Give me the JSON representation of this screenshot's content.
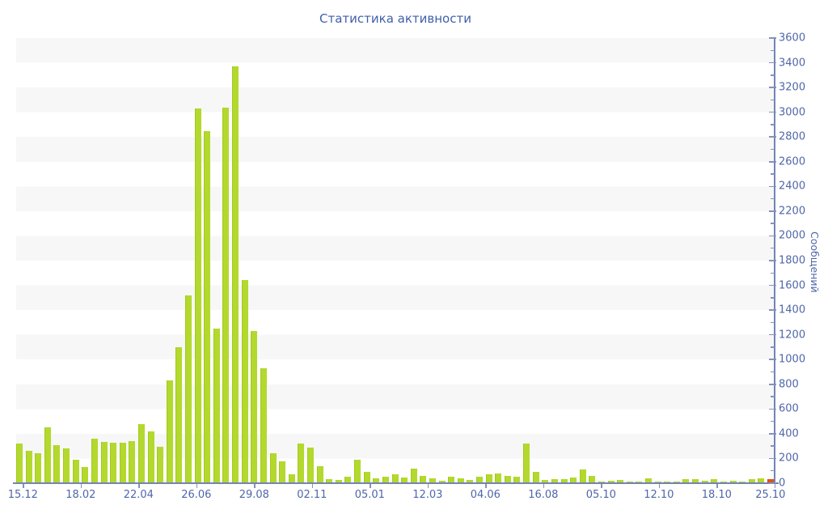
{
  "title": "Статистика активности",
  "colors": {
    "bar": "#b3d92e",
    "bar_border": "#a2c91c",
    "last_bar": "#dd5512",
    "last_bar_border": "#c74a0c",
    "axis": "#7384b5",
    "tick": "#8492bb",
    "text": "#4f67a8",
    "band": "#f7f7f8",
    "background": "#ffffff"
  },
  "chart_data": {
    "type": "bar",
    "title": "Статистика активности",
    "xlabel": "",
    "ylabel": "Сообщений",
    "ylim": [
      0,
      3600
    ],
    "y_tick_step": 200,
    "y_minor_tick_step": 100,
    "grid": "alternating horizontal bands every 200 units, top band (3600-3400) shaded",
    "legend_position": "none",
    "x_tick_labels": [
      "15.12",
      "18.02",
      "22.04",
      "26.06",
      "29.08",
      "02.11",
      "05.01",
      "12.03",
      "04.06",
      "16.08",
      "05.10",
      "12.10",
      "18.10",
      "25.10"
    ],
    "values": [
      320,
      260,
      240,
      450,
      310,
      280,
      190,
      130,
      360,
      335,
      330,
      330,
      340,
      480,
      420,
      295,
      830,
      1100,
      1520,
      3030,
      2850,
      1250,
      3040,
      3370,
      1640,
      1230,
      930,
      240,
      180,
      70,
      320,
      290,
      140,
      35,
      25,
      50,
      190,
      95,
      40,
      55,
      75,
      45,
      115,
      60,
      40,
      20,
      55,
      40,
      25,
      55,
      75,
      80,
      60,
      55,
      320,
      90,
      25,
      35,
      30,
      45,
      110,
      60,
      15,
      20,
      25,
      15,
      12,
      40,
      12,
      10,
      15,
      35,
      35,
      18,
      33,
      12,
      18,
      8,
      30,
      40,
      35
    ],
    "highlight_last_bar": true,
    "note": "last bar (25.10, value 35) drawn in orange; all others lime green"
  }
}
